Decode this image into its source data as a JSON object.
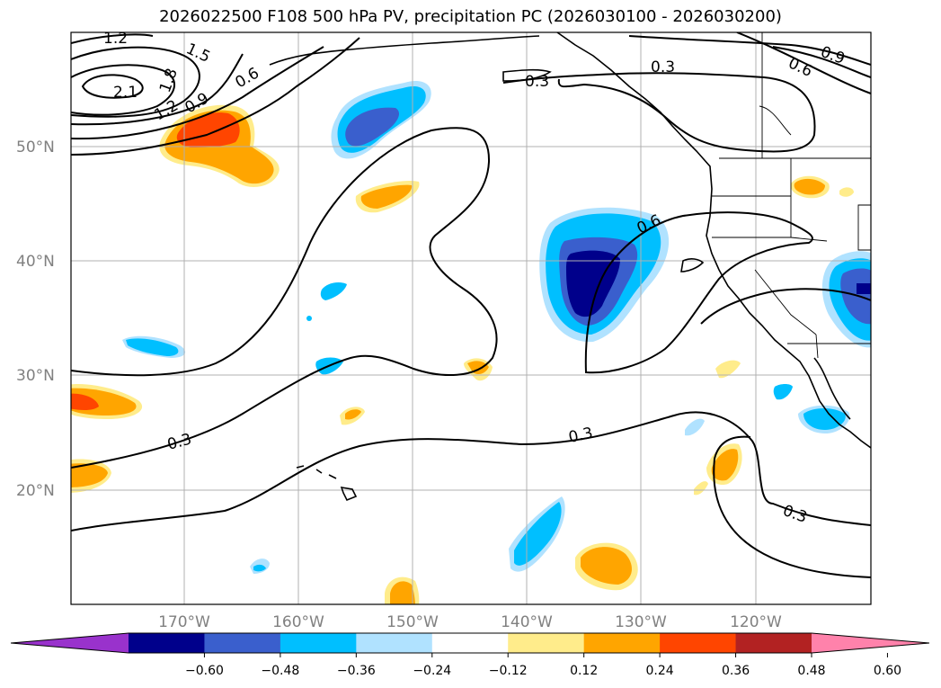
{
  "title": "2026022500 F108 500 hPa PV, precipitation PC (2026030100 - 2026030200)",
  "lat_labels": [
    "50°N",
    "40°N",
    "30°N",
    "20°N"
  ],
  "lon_labels": [
    "170°W",
    "160°W",
    "150°W",
    "140°W",
    "130°W",
    "120°W"
  ],
  "contour_labels": [
    "1.2",
    "1.5",
    "2.1",
    "1.8",
    "1.2",
    "0.9",
    "0.6",
    "0.3",
    "0.3",
    "0.9",
    "0.6",
    "0.6",
    "0.3",
    "0.3",
    "0.3"
  ],
  "colorbar": {
    "ticks": [
      "−0.60",
      "−0.48",
      "−0.36",
      "−0.24",
      "−0.12",
      "0.12",
      "0.24",
      "0.36",
      "0.48",
      "0.60"
    ],
    "colors": [
      "#9932CC",
      "#00008B",
      "#3A5FCD",
      "#00BFFF",
      "#B0E2FF",
      "#FFFFFF",
      "#FFEC8B",
      "#FFA500",
      "#FF4500",
      "#B22222",
      "#FF82AB"
    ]
  },
  "colors": {
    "dark_blue": "#00008B",
    "mid_blue": "#3A5FCD",
    "deep_sky": "#00BFFF",
    "light_blue": "#B0E2FF",
    "light_yellow": "#FFEC8B",
    "orange": "#FFA500",
    "orange_red": "#FF4500"
  }
}
